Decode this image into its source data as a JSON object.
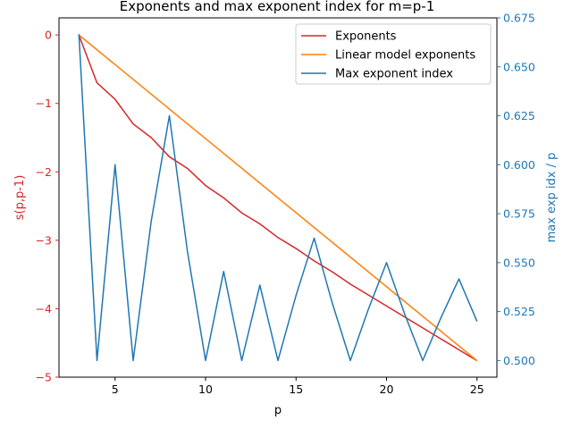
{
  "chart_data": {
    "type": "line",
    "title": "Exponents and max exponent index for m=p-1",
    "xlabel": "p",
    "ylabel_left": "s(p,p-1)",
    "ylabel_right": "max exp idx / p",
    "xlim": [
      1.9,
      26.1
    ],
    "ylim_left": [
      -5,
      0.25
    ],
    "ylim_right": [
      0.4915,
      0.675
    ],
    "xticks": [
      5,
      10,
      15,
      20,
      25
    ],
    "yticks_left": [
      0,
      -1,
      -2,
      -3,
      -4,
      -5
    ],
    "yticks_left_labels": [
      "0",
      "−1",
      "−2",
      "−3",
      "−4",
      "−5"
    ],
    "yticks_right": [
      0.5,
      0.525,
      0.55,
      0.575,
      0.6,
      0.625,
      0.65,
      0.675
    ],
    "yticks_right_labels": [
      "0.500",
      "0.525",
      "0.550",
      "0.575",
      "0.600",
      "0.625",
      "0.650",
      "0.675"
    ],
    "grid": false,
    "legend_position": "top-right",
    "colors": {
      "left_axis": "#d62728",
      "right_axis": "#1f77b4"
    },
    "series": [
      {
        "name": "Exponents",
        "axis": "left",
        "color": "#d62728",
        "x": [
          3,
          4,
          5,
          6,
          7,
          8,
          9,
          10,
          11,
          12,
          13,
          14,
          15,
          16,
          17,
          18,
          19,
          20,
          21,
          22,
          23,
          24,
          25
        ],
        "values": [
          0,
          -0.7,
          -0.94,
          -1.3,
          -1.5,
          -1.78,
          -1.95,
          -2.2,
          -2.38,
          -2.6,
          -2.76,
          -2.96,
          -3.12,
          -3.3,
          -3.46,
          -3.64,
          -3.8,
          -3.96,
          -4.12,
          -4.28,
          -4.44,
          -4.6,
          -4.76
        ]
      },
      {
        "name": "Linear model exponents",
        "axis": "left",
        "color": "#ff7f0e",
        "x": [
          3,
          25
        ],
        "values": [
          0,
          -4.76
        ]
      },
      {
        "name": "Max exponent index",
        "axis": "right",
        "color": "#1f77b4",
        "x": [
          3,
          4,
          5,
          6,
          7,
          8,
          9,
          10,
          11,
          12,
          13,
          14,
          15,
          16,
          17,
          18,
          19,
          20,
          21,
          22,
          23,
          24,
          25
        ],
        "values": [
          0.6667,
          0.5,
          0.6,
          0.5,
          0.5714,
          0.625,
          0.5556,
          0.5,
          0.5455,
          0.5,
          0.5385,
          0.5,
          0.5333,
          0.5625,
          0.5294,
          0.5,
          0.5263,
          0.55,
          0.5238,
          0.5,
          0.5217,
          0.5417,
          0.52
        ]
      }
    ]
  }
}
